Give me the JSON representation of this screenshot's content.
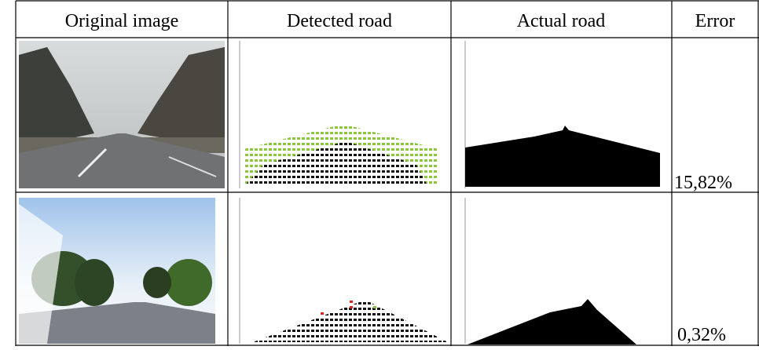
{
  "table": {
    "header": [
      "Original image",
      "Detected road",
      "Actual road",
      "Error"
    ],
    "rows": [
      {
        "error": "15,82%"
      },
      {
        "error": "0,32%"
      }
    ]
  }
}
